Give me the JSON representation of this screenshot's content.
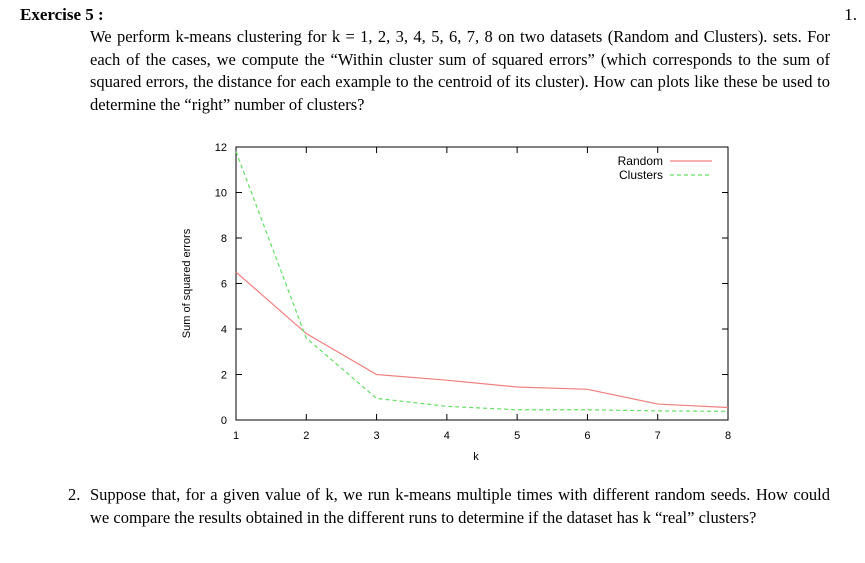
{
  "header": {
    "exercise_title": "Exercise 5 :",
    "page_number": "1."
  },
  "question1": {
    "text": "We perform k-means clustering for k = 1, 2, 3, 4, 5, 6, 7, 8 on two datasets (Random and Clusters). sets. For each of the cases, we compute the “Within cluster sum of squared errors” (which corresponds to the sum of squared errors, the distance for each example to the centroid of its cluster). How can plots like these be used to determine the “right” number of clusters?"
  },
  "question2": {
    "number": "2.",
    "text": "Suppose that, for a given value of k, we run k-means multiple times with different random seeds. How could we compare the results obtained in the different runs to determine if the dataset has k “real” clusters?"
  },
  "chart_data": {
    "type": "line",
    "xlabel": "k",
    "ylabel": "Sum of squared errors",
    "x": [
      1,
      2,
      3,
      4,
      5,
      6,
      7,
      8
    ],
    "xlim": [
      1,
      8
    ],
    "ylim": [
      0,
      12
    ],
    "xticks": [
      "1",
      "2",
      "3",
      "4",
      "5",
      "6",
      "7",
      "8"
    ],
    "yticks": [
      "0",
      "2",
      "4",
      "6",
      "8",
      "10",
      "12"
    ],
    "legend_position": "top-right",
    "grid": false,
    "series": [
      {
        "name": "Random",
        "color": "#f08080",
        "dash": "solid",
        "values": [
          6.5,
          3.8,
          2.0,
          1.75,
          1.45,
          1.35,
          0.7,
          0.55
        ]
      },
      {
        "name": "Clusters",
        "color": "#66dd66",
        "dash": "dashed",
        "values": [
          11.8,
          3.6,
          0.95,
          0.6,
          0.45,
          0.45,
          0.4,
          0.38
        ]
      }
    ]
  }
}
